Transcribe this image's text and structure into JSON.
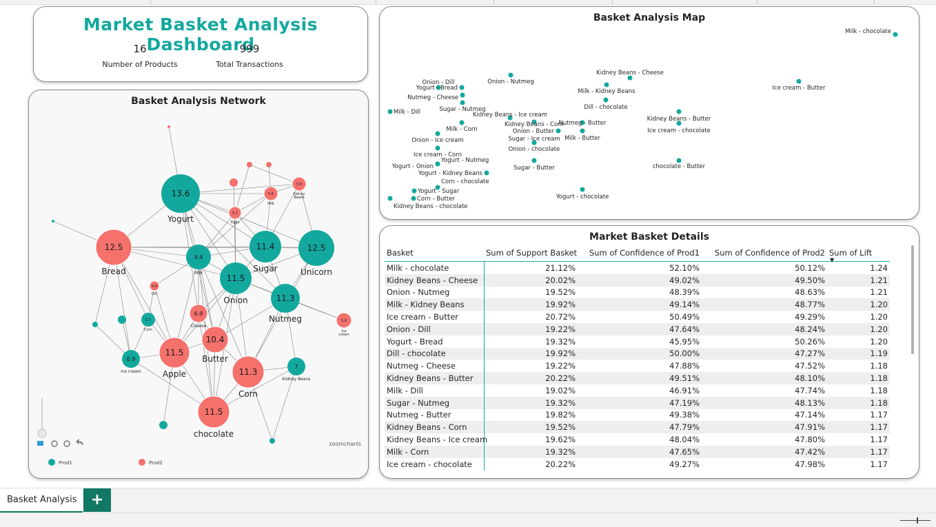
{
  "header": {
    "title": "Market Basket Analysis Dashboard",
    "kpis": [
      {
        "value": "16",
        "label": "Number of Products"
      },
      {
        "value": "999",
        "label": "Total Transactions"
      }
    ]
  },
  "network": {
    "title": "Basket Analysis Network",
    "brand": "zoomcharts",
    "legend": [
      {
        "label": "Prod1",
        "color": "#13a89e"
      },
      {
        "label": "Prod2",
        "color": "#f4716c"
      }
    ],
    "nodes": [
      {
        "value": "13.6",
        "label": "Yogurt",
        "kind": "prod1"
      },
      {
        "value": "12.5",
        "label": "Bread",
        "kind": "prod2"
      },
      {
        "value": "9.4",
        "label": "Milk",
        "kind": "prod1"
      },
      {
        "value": "11.4",
        "label": "Sugar",
        "kind": "prod1"
      },
      {
        "value": "12.5",
        "label": "Unicorn",
        "kind": "prod1"
      },
      {
        "value": "11.5",
        "label": "Onion",
        "kind": "prod1"
      },
      {
        "value": "11.3",
        "label": "Nutmeg",
        "kind": "prod1"
      },
      {
        "value": "6.9",
        "label": "Cheese",
        "kind": "prod2"
      },
      {
        "value": "10.4",
        "label": "Butter",
        "kind": "prod2"
      },
      {
        "value": "11.5",
        "label": "Apple",
        "kind": "prod2"
      },
      {
        "value": "11.3",
        "label": "Corn",
        "kind": "prod2"
      },
      {
        "value": "11.5",
        "label": "chocolate",
        "kind": "prod2"
      },
      {
        "value": "6.9",
        "label": "Ice cream",
        "kind": "prod1"
      },
      {
        "value": "5.7",
        "label": "Corn",
        "kind": "prod1"
      },
      {
        "value": "7",
        "label": "Kidney Beans",
        "kind": "prod1"
      },
      {
        "value": "5.8",
        "label": "Ice cream",
        "kind": "prod2"
      },
      {
        "value": "5.7",
        "label": "Eggs",
        "kind": "prod2"
      },
      {
        "value": "5.6",
        "label": "Milk",
        "kind": "prod2"
      },
      {
        "value": "5.8",
        "label": "Kidney Beans",
        "kind": "prod2"
      },
      {
        "value": "4.6",
        "label": "Dill",
        "kind": "prod2"
      }
    ]
  },
  "map": {
    "title": "Basket Analysis Map",
    "points": [
      "Milk - chocolate",
      "Kidney Beans - Cheese",
      "Onion - Nutmeg",
      "Milk - Kidney Beans",
      "Ice cream - Butter",
      "Onion - Dill",
      "Yogurt - Bread",
      "Nutmeg - Cheese",
      "Sugar - Nutmeg",
      "Dill - chocolate",
      "Milk - Dill",
      "Kidney Beans - Ice cream",
      "Kidney Beans - Butter",
      "Kidney Beans - Corn",
      "Nutmeg - Butter",
      "Milk - Corn",
      "Onion - Butter",
      "Ice cream - chocolate",
      "Onion - Ice cream",
      "Sugar - Ice cream",
      "Milk - Butter",
      "Onion - chocolate",
      "Ice cream - Corn",
      "Yogurt - Nutmeg",
      "Yogurt - Onion",
      "Sugar - Butter",
      "chocolate - Butter",
      "Yogurt - Kidney Beans",
      "Corn - chocolate",
      "Yogurt - chocolate",
      "Yogurt - Sugar",
      "Corn - Butter",
      "Kidney Beans - chocolate"
    ]
  },
  "details": {
    "title": "Market Basket Details",
    "columns": [
      "Basket",
      "Sum of Support Basket",
      "Sum of Confidence of Prod1",
      "Sum of Confidence of Prod2",
      "Sum of Lift"
    ],
    "rows": [
      [
        "Milk - chocolate",
        "21.12%",
        "52.10%",
        "50.12%",
        "1.24"
      ],
      [
        "Kidney Beans - Cheese",
        "20.02%",
        "49.02%",
        "49.50%",
        "1.21"
      ],
      [
        "Onion - Nutmeg",
        "19.52%",
        "48.39%",
        "48.63%",
        "1.21"
      ],
      [
        "Milk - Kidney Beans",
        "19.92%",
        "49.14%",
        "48.77%",
        "1.20"
      ],
      [
        "Ice cream - Butter",
        "20.72%",
        "50.49%",
        "49.29%",
        "1.20"
      ],
      [
        "Onion - Dill",
        "19.22%",
        "47.64%",
        "48.24%",
        "1.20"
      ],
      [
        "Yogurt - Bread",
        "19.32%",
        "45.95%",
        "50.26%",
        "1.20"
      ],
      [
        "Dill - chocolate",
        "19.92%",
        "50.00%",
        "47.27%",
        "1.19"
      ],
      [
        "Nutmeg - Cheese",
        "19.22%",
        "47.88%",
        "47.52%",
        "1.18"
      ],
      [
        "Kidney Beans - Butter",
        "20.22%",
        "49.51%",
        "48.10%",
        "1.18"
      ],
      [
        "Milk - Dill",
        "19.02%",
        "46.91%",
        "47.74%",
        "1.18"
      ],
      [
        "Sugar - Nutmeg",
        "19.32%",
        "47.19%",
        "48.13%",
        "1.18"
      ],
      [
        "Nutmeg - Butter",
        "19.82%",
        "49.38%",
        "47.14%",
        "1.17"
      ],
      [
        "Kidney Beans - Corn",
        "19.52%",
        "47.79%",
        "47.91%",
        "1.17"
      ],
      [
        "Kidney Beans - Ice cream",
        "19.62%",
        "48.04%",
        "47.80%",
        "1.17"
      ],
      [
        "Milk - Corn",
        "19.32%",
        "47.65%",
        "47.42%",
        "1.17"
      ],
      [
        "Ice cream - chocolate",
        "20.22%",
        "49.27%",
        "47.98%",
        "1.17"
      ]
    ]
  },
  "tabs": {
    "active": "Basket Analysis",
    "add": "+"
  },
  "colors": {
    "prod1": "#13a89e",
    "prod2": "#f4716c",
    "accent": "#117865"
  }
}
